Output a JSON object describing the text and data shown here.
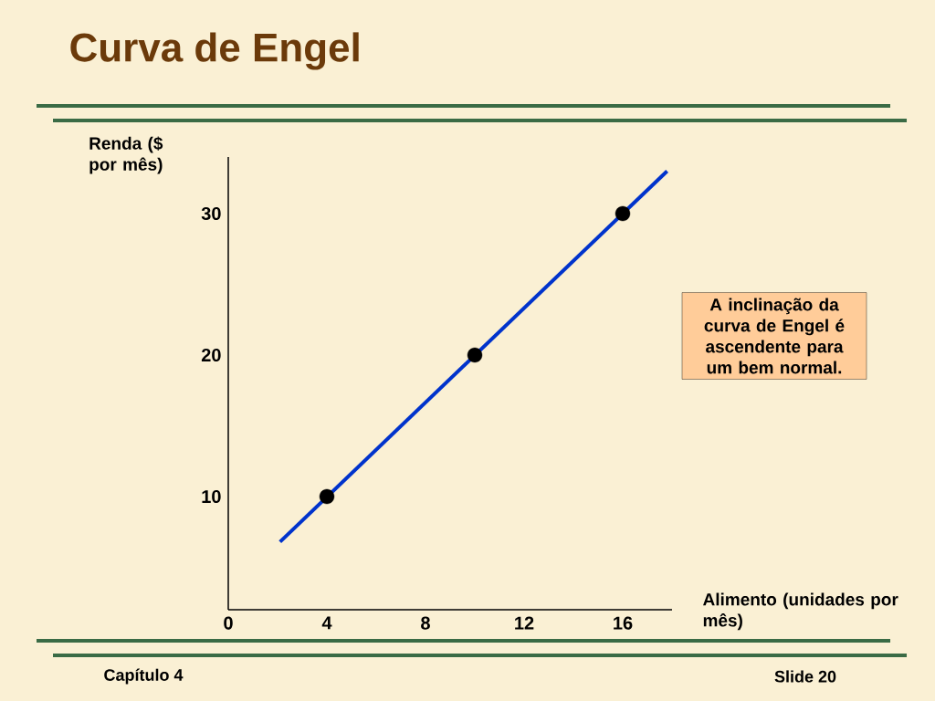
{
  "chart_data": {
    "type": "line",
    "title": "Curva de Engel",
    "ylabel": "Renda ($ por mês)",
    "xlabel": "Alimento (unidades por mês)",
    "xlim": [
      0,
      18
    ],
    "ylim": [
      2,
      34
    ],
    "xticks": [
      0,
      4,
      8,
      12,
      16
    ],
    "yticks": [
      10,
      20,
      30
    ],
    "series": [
      {
        "color": "#0033cc",
        "x": [
          2.1,
          17.8
        ],
        "values": [
          6.8,
          33
        ],
        "line_style": "solid",
        "marker": "none"
      },
      {
        "type": "scatter",
        "color": "#000000",
        "x": [
          4,
          10,
          16
        ],
        "values": [
          10,
          20,
          30
        ],
        "marker": "circle"
      }
    ],
    "annotations": [
      "A inclinação da curva de Engel é ascendente para um bem normal.",
      "Capítulo 4",
      "Slide 20"
    ],
    "grid": false
  }
}
